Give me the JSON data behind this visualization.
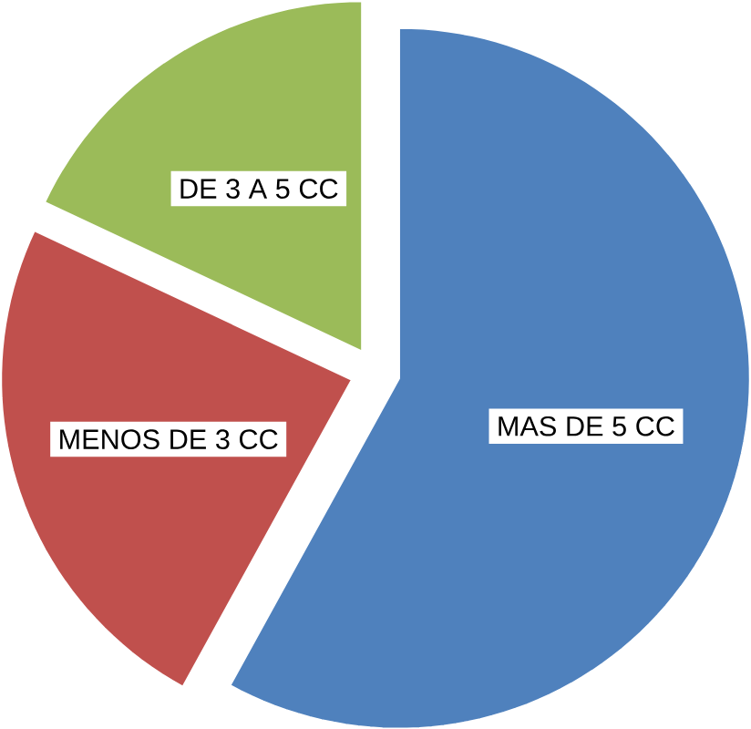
{
  "chart_data": {
    "type": "pie",
    "categories": [
      "MAS DE 5 CC",
      "MENOS DE 3 CC",
      "DE 3 A 5 CC"
    ],
    "values": [
      58,
      24,
      18
    ],
    "colors": [
      "#4f81bd",
      "#c0504d",
      "#9bbb59"
    ]
  }
}
